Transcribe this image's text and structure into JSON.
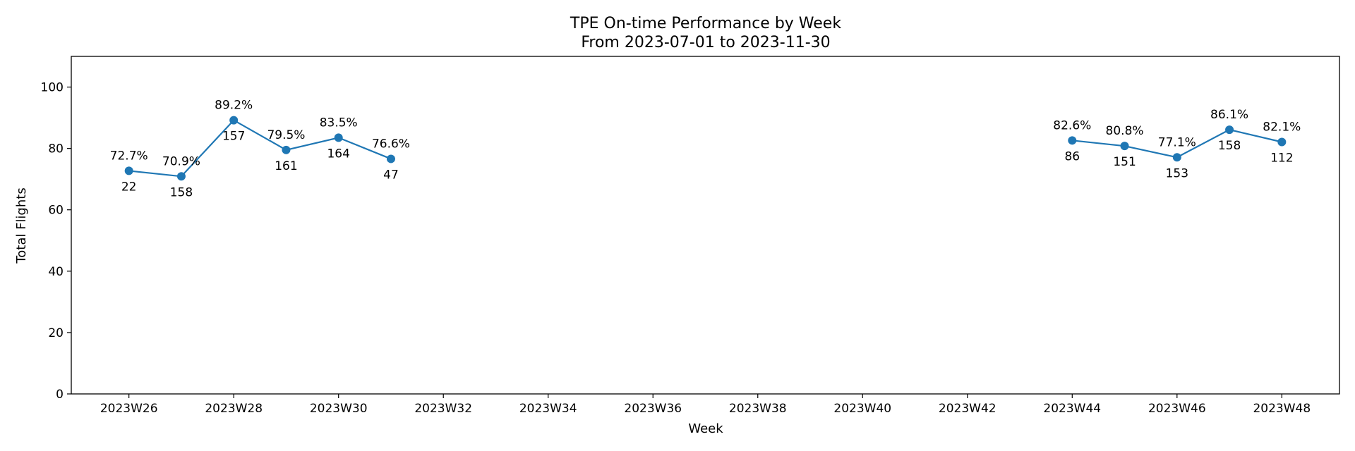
{
  "chart_data": {
    "type": "line",
    "title": "TPE On-time Performance by Week",
    "subtitle": "From 2023-07-01 to 2023-11-30",
    "xlabel": "Week",
    "ylabel": "Total Flights",
    "ylim": [
      0,
      110
    ],
    "xlim": [
      24.9,
      49.1
    ],
    "yticks": [
      0,
      20,
      40,
      60,
      80,
      100
    ],
    "xticks": [
      {
        "x": 26,
        "label": "2023W26"
      },
      {
        "x": 28,
        "label": "2023W28"
      },
      {
        "x": 30,
        "label": "2023W30"
      },
      {
        "x": 32,
        "label": "2023W32"
      },
      {
        "x": 34,
        "label": "2023W34"
      },
      {
        "x": 36,
        "label": "2023W36"
      },
      {
        "x": 38,
        "label": "2023W38"
      },
      {
        "x": 40,
        "label": "2023W40"
      },
      {
        "x": 42,
        "label": "2023W42"
      },
      {
        "x": 44,
        "label": "2023W44"
      },
      {
        "x": 46,
        "label": "2023W46"
      },
      {
        "x": 48,
        "label": "2023W48"
      }
    ],
    "grid": false,
    "series_color": "#1f77b4",
    "segments": [
      {
        "points": [
          {
            "week": 26,
            "on_time_pct": 72.7,
            "pct_label": "72.7%",
            "flights": "22"
          },
          {
            "week": 27,
            "on_time_pct": 70.9,
            "pct_label": "70.9%",
            "flights": "158"
          },
          {
            "week": 28,
            "on_time_pct": 89.2,
            "pct_label": "89.2%",
            "flights": "157"
          },
          {
            "week": 29,
            "on_time_pct": 79.5,
            "pct_label": "79.5%",
            "flights": "161"
          },
          {
            "week": 30,
            "on_time_pct": 83.5,
            "pct_label": "83.5%",
            "flights": "164"
          },
          {
            "week": 31,
            "on_time_pct": 76.6,
            "pct_label": "76.6%",
            "flights": "47"
          }
        ]
      },
      {
        "points": [
          {
            "week": 44,
            "on_time_pct": 82.6,
            "pct_label": "82.6%",
            "flights": "86"
          },
          {
            "week": 45,
            "on_time_pct": 80.8,
            "pct_label": "80.8%",
            "flights": "151"
          },
          {
            "week": 46,
            "on_time_pct": 77.1,
            "pct_label": "77.1%",
            "flights": "153"
          },
          {
            "week": 47,
            "on_time_pct": 86.1,
            "pct_label": "86.1%",
            "flights": "158"
          },
          {
            "week": 48,
            "on_time_pct": 82.1,
            "pct_label": "82.1%",
            "flights": "112"
          }
        ]
      }
    ]
  }
}
